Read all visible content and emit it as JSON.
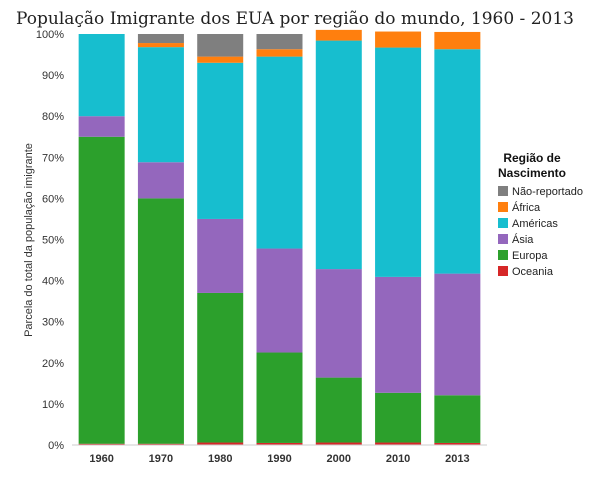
{
  "chart_data": {
    "type": "bar",
    "stacked": true,
    "title": "População Imigrante dos EUA por região do mundo, 1960 - 2013",
    "ylabel": "Parcela do total da população imigrante",
    "xlabel": "",
    "ylim": [
      0,
      100
    ],
    "yticks": [
      "0%",
      "10%",
      "20%",
      "30%",
      "40%",
      "50%",
      "60%",
      "70%",
      "80%",
      "90%",
      "100%"
    ],
    "categories": [
      "1960",
      "1970",
      "1980",
      "1990",
      "2000",
      "2010",
      "2013"
    ],
    "legend": {
      "title_line1": "Região de",
      "title_line2": "Nascimento",
      "placement": "right"
    },
    "series": [
      {
        "name": "Oceania",
        "color": "#d62728",
        "values": [
          0.3,
          0.3,
          0.6,
          0.5,
          0.6,
          0.6,
          0.5
        ]
      },
      {
        "name": "Europa",
        "color": "#2ca02c",
        "values": [
          74.7,
          59.7,
          36.4,
          22.0,
          15.8,
          12.1,
          11.6
        ]
      },
      {
        "name": "Ásia",
        "color": "#9467bd",
        "values": [
          5.0,
          8.8,
          18.0,
          25.3,
          26.4,
          28.2,
          29.6
        ]
      },
      {
        "name": "Américas",
        "color": "#17becf",
        "values": [
          20.0,
          28.0,
          38.0,
          46.7,
          55.6,
          55.8,
          54.6
        ]
      },
      {
        "name": "África",
        "color": "#ff7f0e",
        "values": [
          0.0,
          1.0,
          1.5,
          1.8,
          2.6,
          3.9,
          4.2
        ]
      },
      {
        "name": "Não-reportado",
        "color": "#7f7f7f",
        "values": [
          0.0,
          2.2,
          5.5,
          3.7,
          0.0,
          0.0,
          0.0
        ]
      }
    ],
    "legend_order": [
      "Não-reportado",
      "África",
      "Américas",
      "Ásia",
      "Europa",
      "Oceania"
    ]
  }
}
